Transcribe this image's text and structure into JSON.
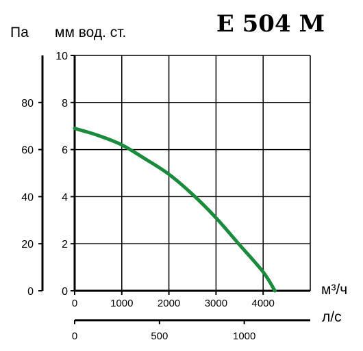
{
  "chart_data": {
    "type": "line",
    "title": "E 504 M",
    "left_axis_unit": "Па",
    "main_y_unit": "мм вод. ст.",
    "x_unit_primary": "м³/ч",
    "x_unit_secondary": "л/с",
    "xlim": [
      0,
      5000
    ],
    "ylim": [
      0,
      10
    ],
    "pa_lim": [
      0,
      100
    ],
    "ls_lim": [
      0,
      1388.9
    ],
    "x_ticks": [
      0,
      1000,
      2000,
      3000,
      4000
    ],
    "y_ticks": [
      0,
      2,
      4,
      6,
      8,
      10
    ],
    "pa_ticks": [
      0,
      20,
      40,
      60,
      80
    ],
    "ls_ticks": [
      0,
      500,
      1000
    ],
    "grid": true,
    "line_color": "#1a8a3c",
    "series": [
      {
        "x": [
          0,
          500,
          1000,
          1500,
          2000,
          2500,
          3000,
          3500,
          4000,
          4250
        ],
        "values": [
          6.9,
          6.6,
          6.2,
          5.6,
          4.95,
          4.1,
          3.1,
          1.95,
          0.8,
          0.0
        ]
      }
    ]
  }
}
